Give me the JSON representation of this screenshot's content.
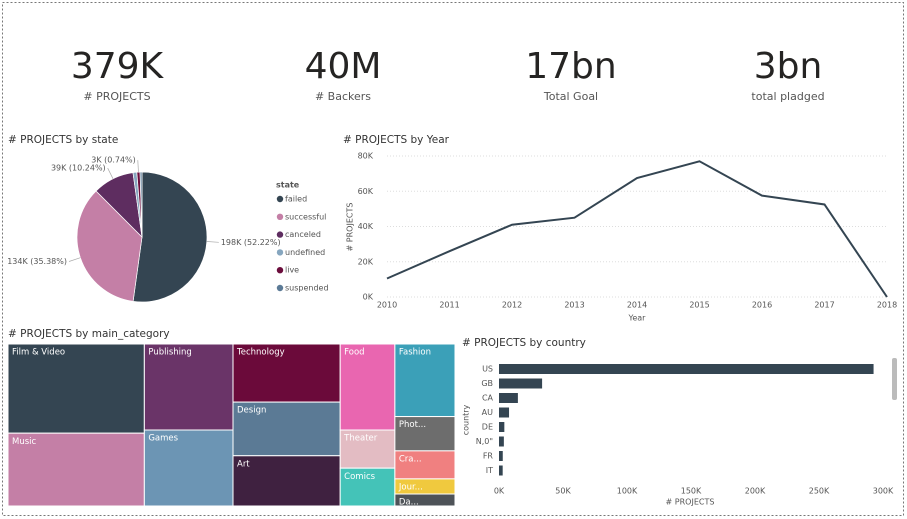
{
  "cards": [
    {
      "value": "379K",
      "label": "# PROJECTS"
    },
    {
      "value": "40M",
      "label": "# Backers"
    },
    {
      "value": "17bn",
      "label": "Total Goal"
    },
    {
      "value": "3bn",
      "label": "total pladged"
    }
  ],
  "chart_data": [
    {
      "type": "pie",
      "title": "# PROJECTS by state",
      "legend_title": "state",
      "series": [
        {
          "name": "failed",
          "color": "#344552",
          "value": 198000,
          "value_label": "198K (52.22%)"
        },
        {
          "name": "successful",
          "color": "#c47fa6",
          "value": 134000,
          "value_label": "134K (35.38%)"
        },
        {
          "name": "canceled",
          "color": "#5e2d60",
          "value": 39000,
          "value_label": "39K (10.24%)"
        },
        {
          "name": "undefined",
          "color": "#86a6bf",
          "value": 3600,
          "value_label": null
        },
        {
          "name": "live",
          "color": "#6b0d3c",
          "value": 3000,
          "value_label": "3K (0.74%)"
        },
        {
          "name": "suspended",
          "color": "#5b7a96",
          "value": 1800,
          "value_label": null
        }
      ]
    },
    {
      "type": "line",
      "title": "# PROJECTS by Year",
      "x_label": "Year",
      "y_label": "# PROJECTS",
      "x": [
        2010,
        2011,
        2012,
        2013,
        2014,
        2015,
        2016,
        2017,
        2018
      ],
      "values": [
        10500,
        26000,
        41000,
        45000,
        67500,
        77000,
        57500,
        52500,
        0
      ],
      "color": "#344552",
      "xlim": [
        2010,
        2018
      ],
      "xticks": [
        2010,
        2011,
        2012,
        2013,
        2014,
        2015,
        2016,
        2017,
        2018
      ],
      "ylim": [
        0,
        80000
      ],
      "yticks": [
        {
          "value": 0,
          "label": "0K"
        },
        {
          "value": 20000,
          "label": "20K"
        },
        {
          "value": 40000,
          "label": "40K"
        },
        {
          "value": 60000,
          "label": "60K"
        },
        {
          "value": 80000,
          "label": "80K"
        }
      ],
      "grid": true
    },
    {
      "type": "treemap",
      "title": "# PROJECTS by main_category",
      "categories": [
        "Film & Video",
        "Music",
        "Publishing",
        "Games",
        "Technology",
        "Design",
        "Art",
        "Food",
        "Theater",
        "Comics",
        "Fashion",
        "Phot...",
        "Cra...",
        "Jour...",
        "Da..."
      ],
      "values": [
        63585,
        51918,
        39874,
        35231,
        32569,
        30070,
        28153,
        24602,
        10913,
        10819,
        22816,
        10779,
        8809,
        4755,
        3768
      ],
      "colors": [
        "#344552",
        "#c47fa6",
        "#6a3468",
        "#6c95b4",
        "#6b0a3a",
        "#5b7a95",
        "#3f2140",
        "#e966b0",
        "#e3bcc3",
        "#44c3b8",
        "#3ba0b8",
        "#6d6d6d",
        "#f08080",
        "#f0c93e",
        "#4e5358"
      ]
    },
    {
      "type": "hbar",
      "title": "# PROJECTS by country",
      "x_label": "# PROJECTS",
      "y_label": "country",
      "categories": [
        "US",
        "GB",
        "CA",
        "AU",
        "DE",
        "N,0\"",
        "FR",
        "IT"
      ],
      "values": [
        292627,
        33672,
        14756,
        7839,
        4171,
        3797,
        2939,
        2878
      ],
      "color": "#344552",
      "xlim": [
        0,
        300000
      ],
      "xticks": [
        {
          "value": 0,
          "label": "0K"
        },
        {
          "value": 50000,
          "label": "50K"
        },
        {
          "value": 100000,
          "label": "100K"
        },
        {
          "value": 150000,
          "label": "150K"
        },
        {
          "value": 200000,
          "label": "200K"
        },
        {
          "value": 250000,
          "label": "250K"
        },
        {
          "value": 300000,
          "label": "300K"
        }
      ]
    }
  ]
}
